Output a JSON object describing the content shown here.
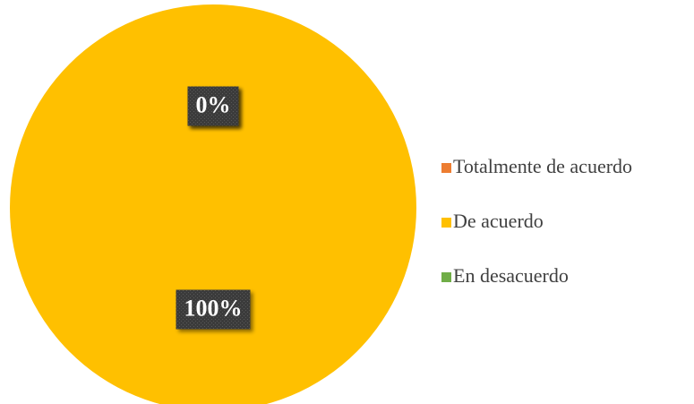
{
  "chart_data": {
    "type": "pie",
    "categories": [
      "Totalmente de acuerdo",
      "De acuerdo",
      "En desacuerdo"
    ],
    "values": [
      0,
      100,
      0
    ],
    "value_labels": [
      "0%",
      "100%",
      "0%"
    ],
    "colors": [
      "#ED7D31",
      "#FFC000",
      "#70AD47"
    ],
    "legend": "right"
  }
}
